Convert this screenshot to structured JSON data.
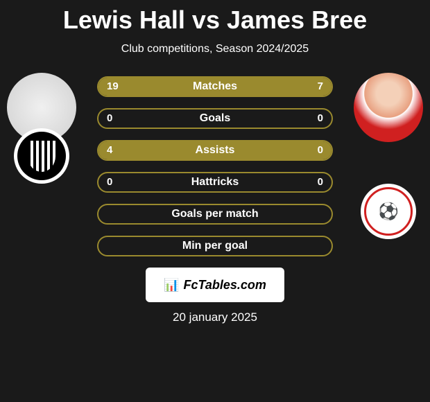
{
  "title": "Lewis Hall vs James Bree",
  "subtitle": "Club competitions, Season 2024/2025",
  "player1": {
    "name": "Lewis Hall",
    "club": "Newcastle United"
  },
  "player2": {
    "name": "James Bree",
    "club": "Southampton"
  },
  "colors": {
    "background": "#1a1a1a",
    "bar_fill": "#9a8a2e",
    "bar_border": "#9a8a2e",
    "text": "#ffffff"
  },
  "stats": [
    {
      "label": "Matches",
      "left_value": "19",
      "right_value": "7",
      "left_pct": 73,
      "right_pct": 27,
      "has_values": true
    },
    {
      "label": "Goals",
      "left_value": "0",
      "right_value": "0",
      "left_pct": 0,
      "right_pct": 0,
      "has_values": true
    },
    {
      "label": "Assists",
      "left_value": "4",
      "right_value": "0",
      "left_pct": 100,
      "right_pct": 0,
      "has_values": true
    },
    {
      "label": "Hattricks",
      "left_value": "0",
      "right_value": "0",
      "left_pct": 0,
      "right_pct": 0,
      "has_values": true
    },
    {
      "label": "Goals per match",
      "left_value": "",
      "right_value": "",
      "left_pct": 0,
      "right_pct": 0,
      "has_values": false
    },
    {
      "label": "Min per goal",
      "left_value": "",
      "right_value": "",
      "left_pct": 0,
      "right_pct": 0,
      "has_values": false
    }
  ],
  "watermark": "FcTables.com",
  "date": "20 january 2025"
}
